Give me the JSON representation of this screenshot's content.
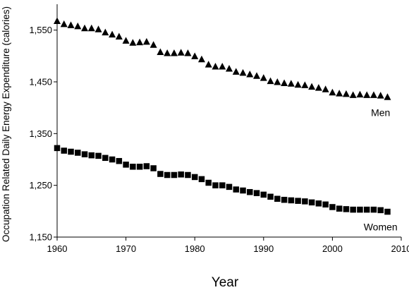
{
  "chart_data": {
    "type": "scatter",
    "xlabel": "Year",
    "ylabel": "Occupation Related Daily Energy Expenditure (calories)",
    "xlim": [
      1960,
      2010
    ],
    "ylim": [
      1150,
      1600
    ],
    "x_ticks": [
      1960,
      1970,
      1980,
      1990,
      2000,
      2010
    ],
    "y_ticks": [
      1150,
      1250,
      1350,
      1450,
      1550
    ],
    "x_tick_labels": [
      "1960",
      "1970",
      "1980",
      "1990",
      "2000",
      "2010"
    ],
    "y_tick_labels": [
      "1,150",
      "1,250",
      "1,350",
      "1,450",
      "1,550"
    ],
    "grid": false,
    "x": [
      1960,
      1961,
      1962,
      1963,
      1964,
      1965,
      1966,
      1967,
      1968,
      1969,
      1970,
      1971,
      1972,
      1973,
      1974,
      1975,
      1976,
      1977,
      1978,
      1979,
      1980,
      1981,
      1982,
      1983,
      1984,
      1985,
      1986,
      1987,
      1988,
      1989,
      1990,
      1991,
      1992,
      1993,
      1994,
      1995,
      1996,
      1997,
      1998,
      1999,
      2000,
      2001,
      2002,
      2003,
      2004,
      2005,
      2006,
      2007,
      2008
    ],
    "series": [
      {
        "name": "Men",
        "marker": "triangle",
        "values": [
          1567,
          1561,
          1559,
          1557,
          1553,
          1553,
          1551,
          1545,
          1541,
          1537,
          1529,
          1525,
          1526,
          1527,
          1521,
          1507,
          1505,
          1505,
          1506,
          1505,
          1499,
          1493,
          1483,
          1479,
          1479,
          1475,
          1469,
          1467,
          1464,
          1461,
          1457,
          1451,
          1449,
          1447,
          1446,
          1444,
          1443,
          1440,
          1438,
          1435,
          1429,
          1427,
          1426,
          1424,
          1425,
          1424,
          1424,
          1423,
          1420
        ]
      },
      {
        "name": "Women",
        "marker": "square",
        "values": [
          1322,
          1317,
          1315,
          1313,
          1310,
          1308,
          1307,
          1303,
          1300,
          1297,
          1290,
          1286,
          1286,
          1287,
          1283,
          1272,
          1270,
          1270,
          1271,
          1270,
          1266,
          1262,
          1255,
          1250,
          1250,
          1247,
          1242,
          1240,
          1237,
          1235,
          1232,
          1228,
          1224,
          1222,
          1221,
          1220,
          1219,
          1217,
          1215,
          1213,
          1208,
          1205,
          1204,
          1203,
          1203,
          1203,
          1203,
          1202,
          1199
        ]
      }
    ],
    "series_labels": [
      {
        "text": "Men",
        "anchor_x": 2007,
        "anchor_y": 1418
      },
      {
        "text": "Women",
        "anchor_x": 2007,
        "anchor_y": 1197
      }
    ],
    "colors": {
      "marker": "#000000",
      "axis": "#000000",
      "background": "#ffffff"
    }
  }
}
